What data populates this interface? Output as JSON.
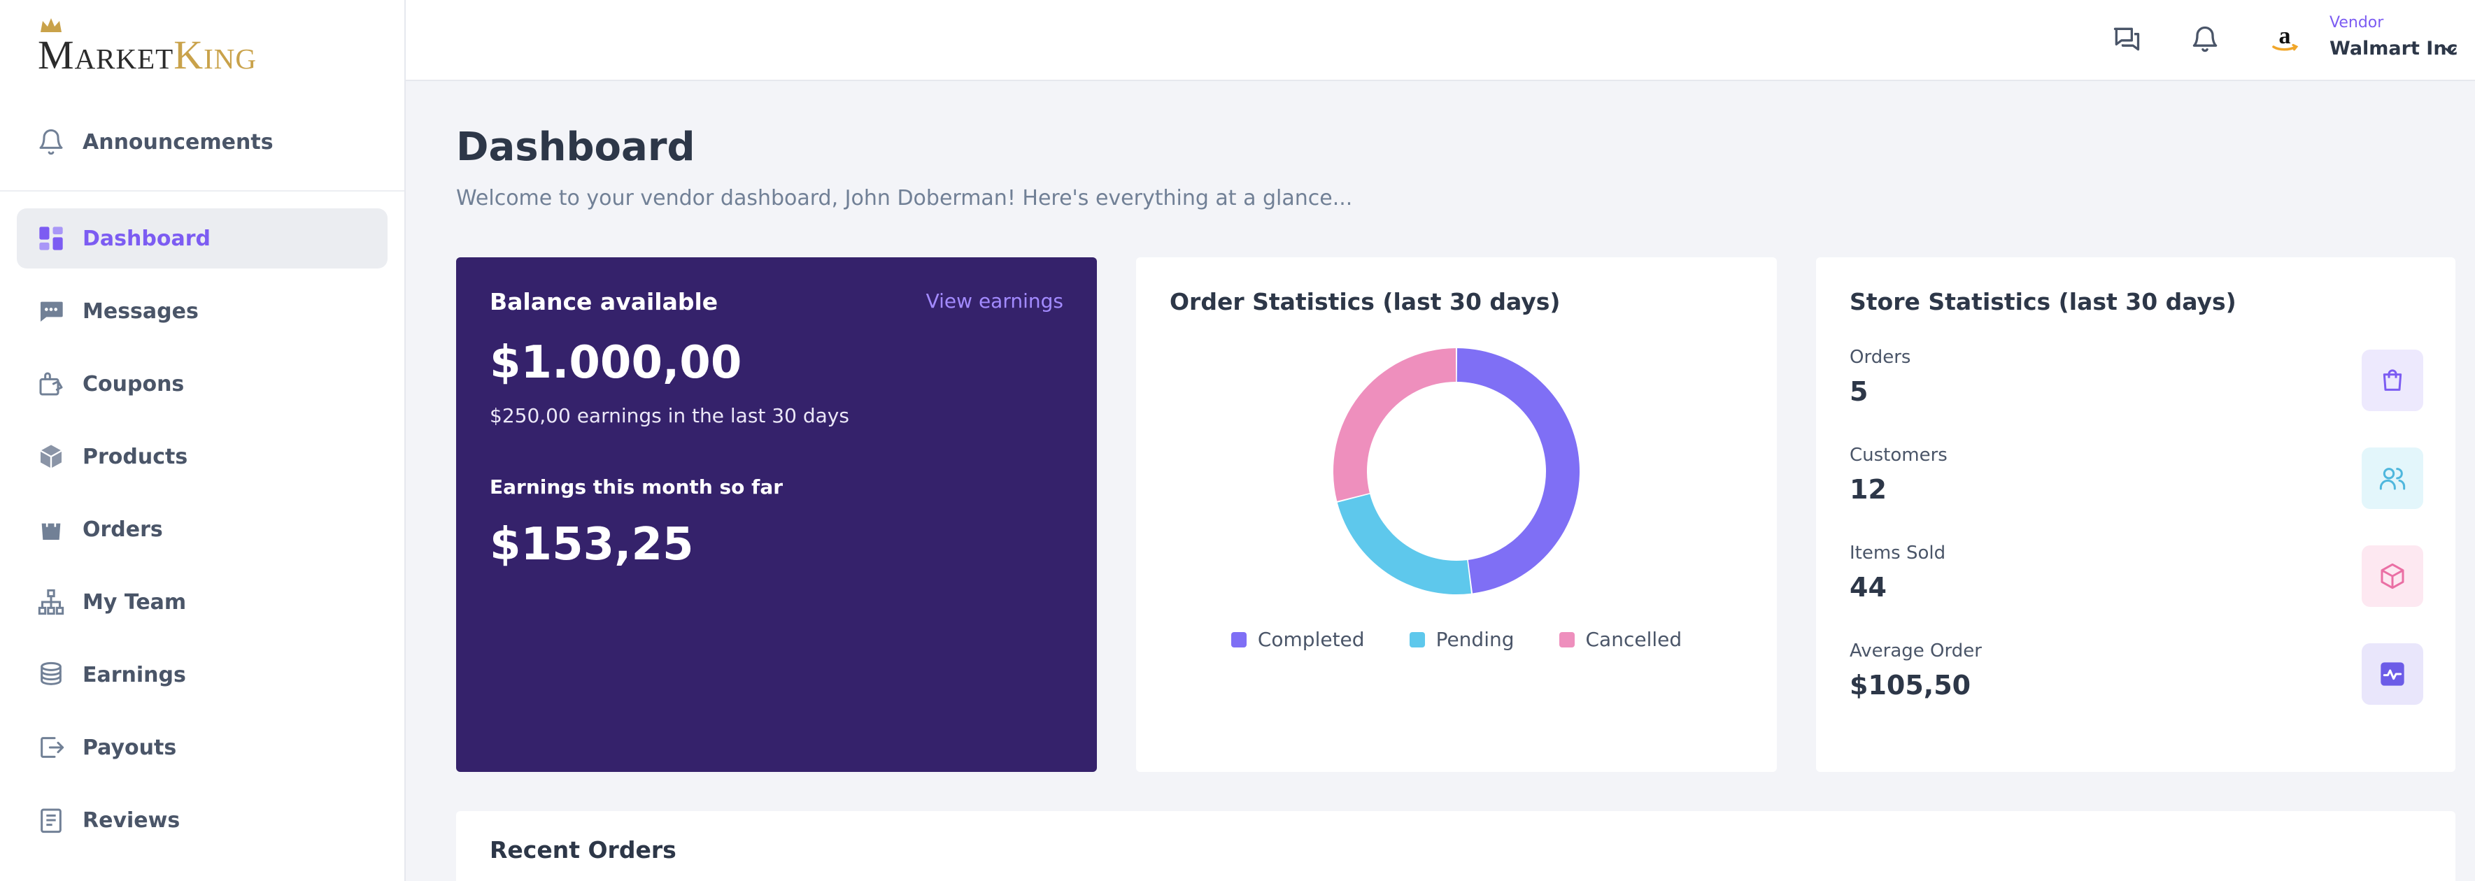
{
  "brand": {
    "logo_main": "Market",
    "logo_accent": "King"
  },
  "sidebar": {
    "announcements": {
      "label": "Announcements",
      "icon": "bell-icon"
    },
    "items": [
      {
        "label": "Dashboard",
        "icon": "dashboard-grid-icon",
        "active": true
      },
      {
        "label": "Messages",
        "icon": "chat-bubble-icon"
      },
      {
        "label": "Coupons",
        "icon": "coupon-icon"
      },
      {
        "label": "Products",
        "icon": "box-icon"
      },
      {
        "label": "Orders",
        "icon": "shopping-bag-icon"
      },
      {
        "label": "My Team",
        "icon": "org-chart-icon"
      },
      {
        "label": "Earnings",
        "icon": "coins-icon"
      },
      {
        "label": "Payouts",
        "icon": "payout-icon"
      },
      {
        "label": "Reviews",
        "icon": "clipboard-icon"
      }
    ]
  },
  "topbar": {
    "vendor_caption": "Vendor",
    "vendor_name": "Walmart Inc",
    "icons": [
      "chat-icon",
      "notification-bell-icon",
      "amazon-avatar-icon",
      "chevron-down-icon"
    ]
  },
  "page": {
    "title": "Dashboard",
    "subtitle": "Welcome to your vendor dashboard, John Doberman! Here's everything at a glance..."
  },
  "balance_card": {
    "title": "Balance available",
    "link": "View earnings",
    "amount": "$1.000,00",
    "sub": "$250,00 earnings in the last 30 days",
    "month_label": "Earnings this month so far",
    "month_amount": "$153,25"
  },
  "order_stats": {
    "title": "Order Statistics (last 30 days)",
    "legend": [
      {
        "label": "Completed",
        "color": "#7f6ff5"
      },
      {
        "label": "Pending",
        "color": "#5ec8ec"
      },
      {
        "label": "Cancelled",
        "color": "#ee8fbd"
      }
    ]
  },
  "chart_data": {
    "type": "pie",
    "title": "Order Statistics (last 30 days)",
    "categories": [
      "Completed",
      "Pending",
      "Cancelled"
    ],
    "values": [
      48,
      23,
      29
    ],
    "colors": [
      "#7f6ff5",
      "#5ec8ec",
      "#ee8fbd"
    ],
    "donut": true,
    "legend": "bottom"
  },
  "store_stats": {
    "title": "Store Statistics (last 30 days)",
    "items": [
      {
        "label": "Orders",
        "value": "5",
        "icon": "shopping-bag-icon",
        "bg": "#ede9fd",
        "fg": "#7c5cf2"
      },
      {
        "label": "Customers",
        "value": "12",
        "icon": "users-icon",
        "bg": "#e3f6fb",
        "fg": "#4fb7dd"
      },
      {
        "label": "Items Sold",
        "value": "44",
        "icon": "cube-icon",
        "bg": "#fde8f1",
        "fg": "#ea6fa4"
      },
      {
        "label": "Average Order",
        "value": "$105,50",
        "icon": "activity-icon",
        "bg": "#e9e6fb",
        "fg": "#6c5ce7"
      }
    ]
  },
  "recent_orders": {
    "title": "Recent Orders"
  }
}
